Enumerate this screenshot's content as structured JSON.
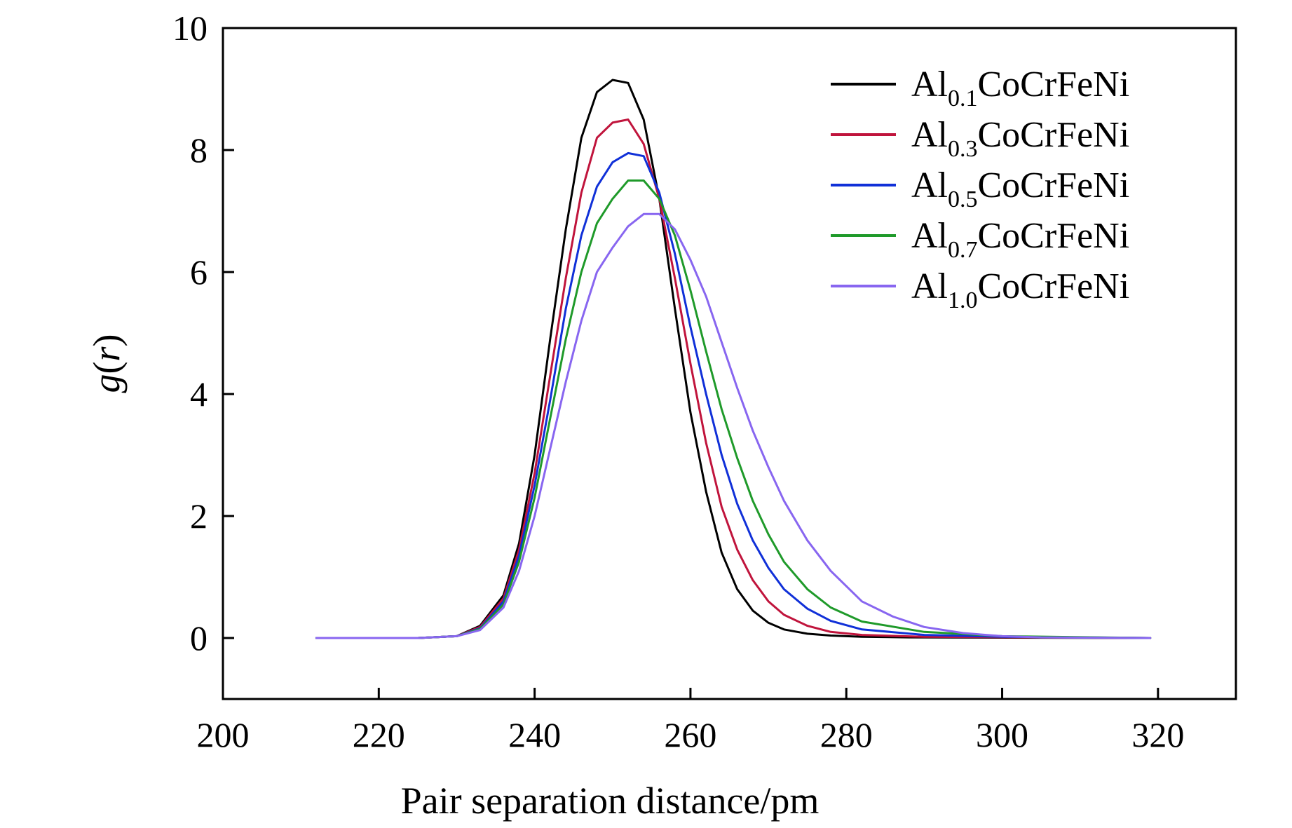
{
  "chart_data": {
    "type": "line",
    "title": "",
    "xlabel": "Pair separation distance/pm",
    "ylabel": "g(r)",
    "xlim": [
      200,
      330
    ],
    "ylim": [
      -1,
      10
    ],
    "xticks": [
      "200",
      "220",
      "240",
      "260",
      "280",
      "300",
      "320"
    ],
    "yticks": [
      "0",
      "2",
      "4",
      "6",
      "8",
      "10"
    ],
    "legend_position": "top-right",
    "series": [
      {
        "name": "Al0.1CoCrFeNi",
        "label_prefix": "Al",
        "label_sub": "0.1",
        "label_suffix": "CoCrFeNi",
        "color": "#000000",
        "x": [
          212,
          225,
          230,
          233,
          236,
          238,
          240,
          242,
          244,
          246,
          248,
          250,
          252,
          254,
          256,
          258,
          260,
          262,
          264,
          266,
          268,
          270,
          272,
          275,
          278,
          282,
          288,
          319
        ],
        "y": [
          0,
          0,
          0.03,
          0.2,
          0.7,
          1.55,
          3.0,
          4.9,
          6.7,
          8.2,
          8.95,
          9.15,
          9.1,
          8.5,
          7.2,
          5.4,
          3.7,
          2.4,
          1.4,
          0.8,
          0.45,
          0.25,
          0.14,
          0.07,
          0.04,
          0.02,
          0.01,
          0
        ]
      },
      {
        "name": "Al0.3CoCrFeNi",
        "label_prefix": "Al",
        "label_sub": "0.3",
        "label_suffix": "CoCrFeNi",
        "color": "#c0143c",
        "x": [
          212,
          225,
          230,
          233,
          236,
          238,
          240,
          242,
          244,
          246,
          248,
          250,
          252,
          254,
          256,
          258,
          260,
          262,
          264,
          266,
          268,
          270,
          272,
          275,
          278,
          282,
          290,
          319
        ],
        "y": [
          0,
          0,
          0.03,
          0.18,
          0.65,
          1.45,
          2.7,
          4.3,
          5.9,
          7.3,
          8.2,
          8.45,
          8.5,
          8.1,
          7.2,
          5.9,
          4.5,
          3.2,
          2.15,
          1.45,
          0.95,
          0.6,
          0.38,
          0.2,
          0.1,
          0.05,
          0.02,
          0
        ]
      },
      {
        "name": "Al0.5CoCrFeNi",
        "label_prefix": "Al",
        "label_sub": "0.5",
        "label_suffix": "CoCrFeNi",
        "color": "#1030d8",
        "x": [
          212,
          225,
          230,
          233,
          236,
          238,
          240,
          242,
          244,
          246,
          248,
          250,
          252,
          254,
          256,
          258,
          260,
          262,
          264,
          266,
          268,
          270,
          272,
          275,
          278,
          282,
          290,
          300,
          319
        ],
        "y": [
          0,
          0,
          0.03,
          0.16,
          0.6,
          1.35,
          2.5,
          3.9,
          5.4,
          6.6,
          7.4,
          7.8,
          7.95,
          7.9,
          7.3,
          6.3,
          5.1,
          4.0,
          3.0,
          2.2,
          1.6,
          1.15,
          0.8,
          0.48,
          0.28,
          0.14,
          0.05,
          0.02,
          0
        ]
      },
      {
        "name": "Al0.7CoCrFeNi",
        "label_prefix": "Al",
        "label_sub": "0.7",
        "label_suffix": "CoCrFeNi",
        "color": "#1f9a2a",
        "x": [
          212,
          225,
          230,
          233,
          236,
          238,
          240,
          242,
          244,
          246,
          248,
          250,
          252,
          254,
          256,
          258,
          260,
          262,
          264,
          266,
          268,
          270,
          272,
          275,
          278,
          282,
          290,
          300,
          319
        ],
        "y": [
          0,
          0,
          0.03,
          0.15,
          0.55,
          1.25,
          2.3,
          3.6,
          4.9,
          6.0,
          6.8,
          7.2,
          7.5,
          7.5,
          7.2,
          6.6,
          5.7,
          4.7,
          3.75,
          2.95,
          2.25,
          1.7,
          1.25,
          0.8,
          0.5,
          0.27,
          0.1,
          0.03,
          0
        ]
      },
      {
        "name": "Al1.0CoCrFeNi",
        "label_prefix": "Al",
        "label_sub": "1.0",
        "label_suffix": "CoCrFeNi",
        "color": "#8866f0",
        "x": [
          212,
          225,
          230,
          233,
          236,
          238,
          240,
          242,
          244,
          246,
          248,
          250,
          252,
          254,
          256,
          258,
          260,
          262,
          264,
          266,
          268,
          270,
          272,
          275,
          278,
          282,
          286,
          290,
          295,
          300,
          305,
          319
        ],
        "y": [
          0,
          0,
          0.03,
          0.13,
          0.5,
          1.1,
          2.0,
          3.1,
          4.2,
          5.2,
          6.0,
          6.4,
          6.75,
          6.95,
          6.95,
          6.7,
          6.2,
          5.6,
          4.85,
          4.1,
          3.4,
          2.8,
          2.25,
          1.6,
          1.1,
          0.6,
          0.35,
          0.18,
          0.08,
          0.03,
          0.01,
          0
        ]
      }
    ]
  }
}
